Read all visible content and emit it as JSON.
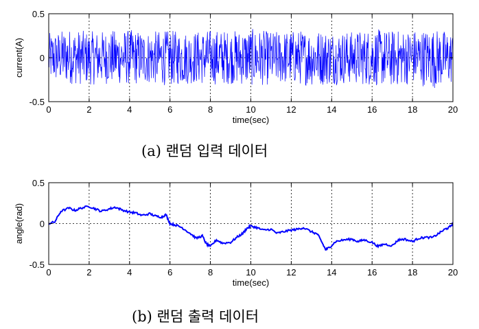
{
  "captions": {
    "a": "(a) 랜덤 입력 데이터",
    "b": "(b) 랜덤 출력 데이터"
  },
  "colors": {
    "series": "#0000ff",
    "axes": "#000000",
    "grid": "#000000"
  },
  "chart_data": [
    {
      "type": "line",
      "title": "",
      "xlabel": "time(sec)",
      "ylabel": "current(A)",
      "xlim": [
        0,
        20
      ],
      "ylim": [
        -0.5,
        0.5
      ],
      "xticks": [
        0,
        2,
        4,
        6,
        8,
        10,
        12,
        14,
        16,
        18,
        20
      ],
      "yticks": [
        -0.5,
        0,
        0.5
      ],
      "ytick_labels": [
        "-0.5",
        "0",
        "0.5"
      ],
      "grid": true,
      "signal": "random noise, uniform amplitude about ±0.3",
      "amplitude": 0.3,
      "series": [
        {
          "x": [
            0,
            1,
            2,
            3,
            4,
            5,
            6,
            7,
            8,
            9,
            10,
            11,
            12,
            13,
            14,
            15,
            16,
            17,
            18,
            19,
            20
          ],
          "y_max": [
            0.28,
            0.33,
            0.3,
            0.31,
            0.32,
            0.3,
            0.31,
            0.3,
            0.32,
            0.31,
            0.33,
            0.3,
            0.31,
            0.32,
            0.31,
            0.3,
            0.33,
            0.31,
            0.32,
            0.33,
            0.3
          ],
          "y_min": [
            -0.28,
            -0.3,
            -0.31,
            -0.3,
            -0.31,
            -0.3,
            -0.32,
            -0.3,
            -0.31,
            -0.3,
            -0.32,
            -0.31,
            -0.3,
            -0.32,
            -0.31,
            -0.3,
            -0.32,
            -0.33,
            -0.3,
            -0.35,
            -0.3
          ]
        }
      ]
    },
    {
      "type": "line",
      "title": "",
      "xlabel": "time(sec)",
      "ylabel": "angle(rad)",
      "xlim": [
        0,
        20
      ],
      "ylim": [
        -0.5,
        0.5
      ],
      "xticks": [
        0,
        2,
        4,
        6,
        8,
        10,
        12,
        14,
        16,
        18,
        20
      ],
      "yticks": [
        -0.5,
        0,
        0.5
      ],
      "ytick_labels": [
        "-0.5",
        "0",
        "0.5"
      ],
      "grid": true,
      "series": [
        {
          "x": [
            0,
            0.3,
            0.6,
            1.0,
            1.3,
            1.6,
            2.0,
            2.3,
            2.6,
            3.0,
            3.3,
            3.6,
            4.0,
            4.3,
            4.6,
            5.0,
            5.3,
            5.6,
            5.8,
            6.0,
            6.3,
            6.6,
            7.0,
            7.3,
            7.6,
            7.8,
            8.0,
            8.3,
            8.6,
            9.0,
            9.3,
            9.6,
            9.8,
            10.0,
            10.3,
            10.6,
            11.0,
            11.3,
            11.6,
            12.0,
            12.3,
            12.6,
            13.0,
            13.3,
            13.5,
            13.7,
            13.9,
            14.2,
            14.6,
            15.0,
            15.3,
            15.6,
            16.0,
            16.3,
            16.6,
            17.0,
            17.3,
            17.6,
            18.0,
            18.3,
            18.6,
            19.0,
            19.3,
            19.6,
            19.8,
            20.0
          ],
          "y": [
            0.0,
            0.02,
            0.15,
            0.19,
            0.16,
            0.19,
            0.21,
            0.18,
            0.15,
            0.18,
            0.2,
            0.17,
            0.14,
            0.13,
            0.1,
            0.12,
            0.09,
            0.08,
            0.11,
            0.0,
            -0.02,
            -0.05,
            -0.12,
            -0.18,
            -0.15,
            -0.25,
            -0.28,
            -0.2,
            -0.24,
            -0.23,
            -0.17,
            -0.12,
            -0.06,
            -0.03,
            -0.05,
            -0.08,
            -0.07,
            -0.12,
            -0.1,
            -0.08,
            -0.07,
            -0.05,
            -0.1,
            -0.13,
            -0.22,
            -0.32,
            -0.29,
            -0.22,
            -0.2,
            -0.19,
            -0.22,
            -0.2,
            -0.23,
            -0.28,
            -0.25,
            -0.27,
            -0.2,
            -0.19,
            -0.22,
            -0.18,
            -0.17,
            -0.17,
            -0.12,
            -0.07,
            -0.05,
            0.0
          ]
        }
      ]
    }
  ]
}
